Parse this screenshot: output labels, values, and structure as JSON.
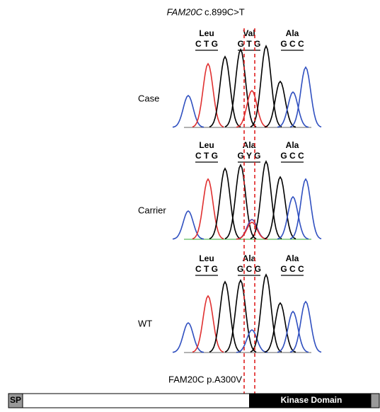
{
  "header": {
    "gene": "FAM20C",
    "variant": "c.899C>T"
  },
  "panels": [
    {
      "label": "Case",
      "codons": [
        {
          "aa": "Leu",
          "bases": "C T G"
        },
        {
          "aa": "Val",
          "bases": "G T G"
        },
        {
          "aa": "Ala",
          "bases": "G C C"
        }
      ]
    },
    {
      "label": "Carrier",
      "codons": [
        {
          "aa": "Leu",
          "bases": "C T G"
        },
        {
          "aa": "Ala",
          "bases": "G Y G"
        },
        {
          "aa": "Ala",
          "bases": "G C C"
        }
      ]
    },
    {
      "label": "WT",
      "codons": [
        {
          "aa": "Leu",
          "bases": "C T G"
        },
        {
          "aa": "Ala",
          "bases": "G C G"
        },
        {
          "aa": "Ala",
          "bases": "G C C"
        }
      ]
    }
  ],
  "protein": {
    "mutation": "FAM20C p.A300V",
    "signal": "SP",
    "domain": "Kinase Domain"
  }
}
